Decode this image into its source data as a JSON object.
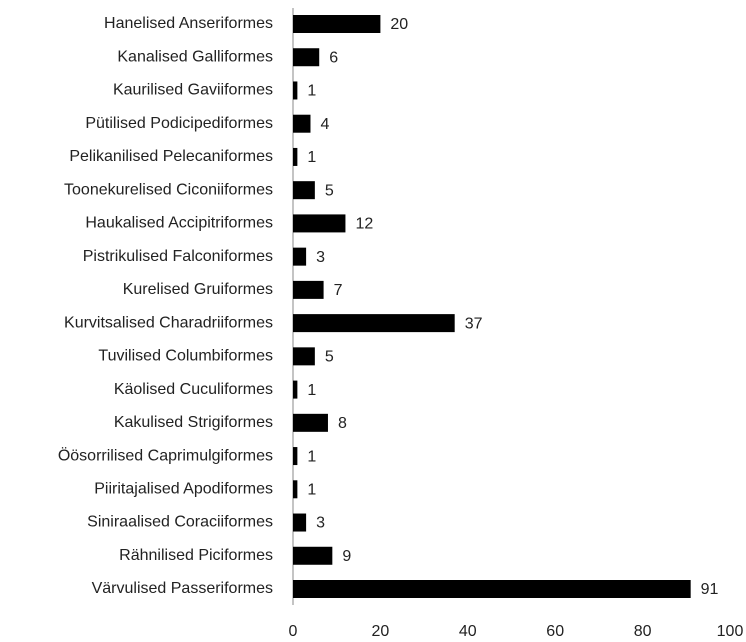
{
  "chart_data": {
    "type": "bar",
    "orientation": "horizontal",
    "categories": [
      "Hanelised Anseriformes",
      "Kanalised Galliformes",
      "Kaurilised Gaviiformes",
      "Pütilised Podicipediformes",
      "Pelikanilised Pelecaniformes",
      "Toonekurelised Ciconiiformes",
      "Haukalised Accipitriformes",
      "Pistrikulised Falconiformes",
      "Kurelised Gruiformes",
      "Kurvitsalised Charadriiformes",
      "Tuvilised Columbiformes",
      "Käolised Cuculiformes",
      "Kakulised Strigiformes",
      "Öösorrilised Caprimulgiformes",
      "Piiritajalised Apodiformes",
      "Siniraalised Coraciiformes",
      "Rähnilised Piciformes",
      "Värvulised Passeriformes"
    ],
    "values": [
      20,
      6,
      1,
      4,
      1,
      5,
      12,
      3,
      7,
      37,
      5,
      1,
      8,
      1,
      1,
      3,
      9,
      91
    ],
    "color": "#000000",
    "xlim": [
      0,
      100
    ],
    "xticks": [
      0,
      20,
      40,
      60,
      80,
      100
    ],
    "grid": false
  }
}
